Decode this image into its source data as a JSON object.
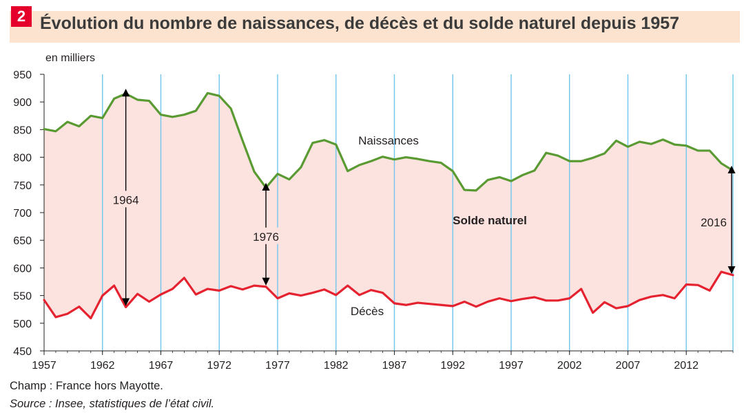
{
  "figure": {
    "number": "2",
    "title": "Évolution du nombre de naissances, de décès et du solde naturel depuis 1957"
  },
  "notes": {
    "champ": "Champ : France hors Mayotte.",
    "source": "Source : Insee, statistiques de l’état civil."
  },
  "colors": {
    "births": "#5a9a32",
    "deaths": "#e52330",
    "fill": "#fde3df",
    "grid": "#6ec6ee",
    "title_bg": "#fbe3cf",
    "badge": "#e4002b"
  },
  "chart_data": {
    "type": "line",
    "unit_label": "en milliers",
    "ylim": [
      450,
      950
    ],
    "yticks": [
      450,
      500,
      550,
      600,
      650,
      700,
      750,
      800,
      850,
      900,
      950
    ],
    "xlim": [
      1957,
      2016
    ],
    "xticks": [
      1957,
      1962,
      1967,
      1972,
      1977,
      1982,
      1987,
      1992,
      1997,
      2002,
      2007,
      2012
    ],
    "grid": "vertical",
    "fill_between_series": "Solde naturel",
    "x": [
      1957,
      1958,
      1959,
      1960,
      1961,
      1962,
      1963,
      1964,
      1965,
      1966,
      1967,
      1968,
      1969,
      1970,
      1971,
      1972,
      1973,
      1974,
      1975,
      1976,
      1977,
      1978,
      1979,
      1980,
      1981,
      1982,
      1983,
      1984,
      1985,
      1986,
      1987,
      1988,
      1989,
      1990,
      1991,
      1992,
      1993,
      1994,
      1995,
      1996,
      1997,
      1998,
      1999,
      2000,
      2001,
      2002,
      2003,
      2004,
      2005,
      2006,
      2007,
      2008,
      2009,
      2010,
      2011,
      2012,
      2013,
      2014,
      2015,
      2016
    ],
    "series": [
      {
        "name": "Naissances",
        "color": "#5a9a32",
        "values": [
          851,
          847,
          864,
          856,
          875,
          871,
          906,
          915,
          904,
          902,
          877,
          873,
          877,
          884,
          916,
          911,
          888,
          830,
          774,
          745,
          770,
          760,
          782,
          826,
          831,
          823,
          775,
          786,
          793,
          801,
          796,
          800,
          797,
          793,
          790,
          775,
          741,
          740,
          759,
          764,
          757,
          768,
          776,
          808,
          803,
          793,
          793,
          799,
          807,
          830,
          819,
          828,
          824,
          832,
          823,
          821,
          812,
          812,
          789,
          776
        ]
      },
      {
        "name": "Décès",
        "color": "#e52330",
        "values": [
          542,
          511,
          517,
          530,
          509,
          550,
          568,
          529,
          553,
          539,
          552,
          562,
          582,
          552,
          562,
          559,
          567,
          561,
          568,
          566,
          545,
          554,
          550,
          555,
          561,
          551,
          568,
          551,
          560,
          555,
          536,
          533,
          537,
          535,
          533,
          531,
          539,
          530,
          539,
          545,
          540,
          544,
          547,
          541,
          541,
          545,
          562,
          519,
          538,
          527,
          531,
          542,
          548,
          551,
          545,
          570,
          569,
          559,
          593,
          587
        ]
      }
    ],
    "annotations": [
      {
        "label": "1964",
        "x": 1964,
        "from": 915,
        "to": 529
      },
      {
        "label": "1976",
        "x": 1976,
        "from": 745,
        "to": 566
      },
      {
        "label": "2016",
        "x": 2016,
        "from": 776,
        "to": 587
      }
    ],
    "labels": {
      "births": "Naissances",
      "deaths": "Décès",
      "natural_balance": "Solde naturel"
    }
  }
}
